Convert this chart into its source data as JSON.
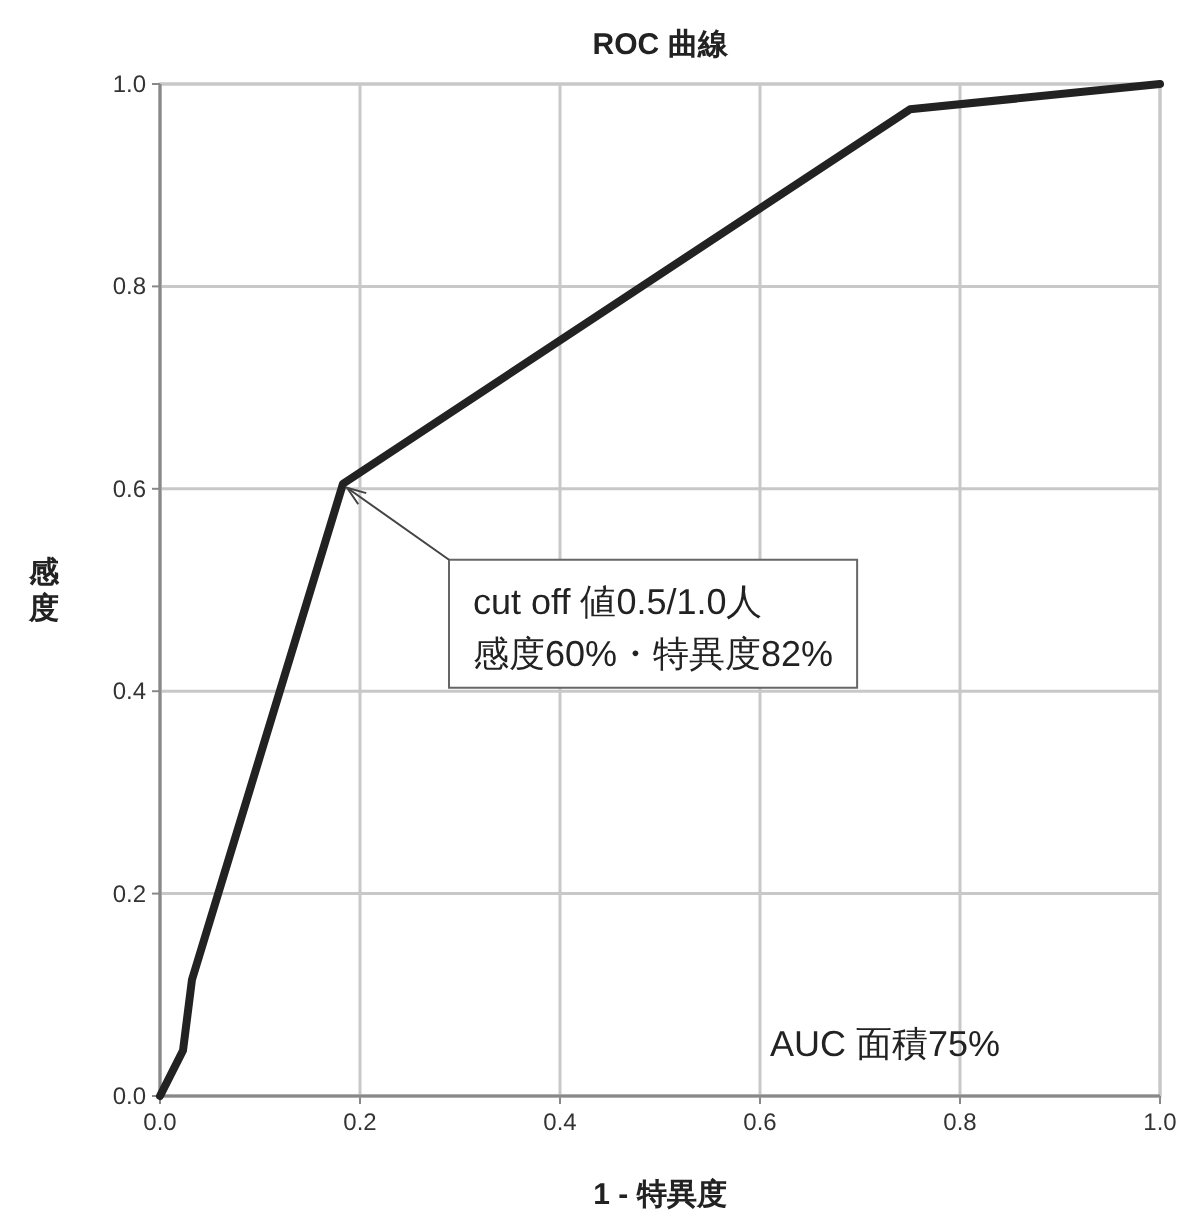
{
  "chart_data": {
    "type": "line",
    "title": "ROC 曲線",
    "xlabel": "1 - 特異度",
    "ylabel": "感度",
    "x": [
      0,
      0.023,
      0.032,
      0.183,
      0.75,
      1
    ],
    "series": [
      {
        "color": "#222222",
        "values": [
          0,
          0.045,
          0.115,
          0.605,
          0.975,
          1
        ]
      }
    ],
    "xlim": [
      0,
      1
    ],
    "ylim": [
      0,
      1
    ],
    "xticks": [
      {
        "value": 0,
        "label": "0.0"
      },
      {
        "value": 0.2,
        "label": "0.2"
      },
      {
        "value": 0.4,
        "label": "0.4"
      },
      {
        "value": 0.6,
        "label": "0.6"
      },
      {
        "value": 0.8,
        "label": "0.8"
      },
      {
        "value": 1,
        "label": "1.0"
      }
    ],
    "yticks": [
      {
        "value": 0,
        "label": "0.0"
      },
      {
        "value": 0.2,
        "label": "0.2"
      },
      {
        "value": 0.4,
        "label": "0.4"
      },
      {
        "value": 0.6,
        "label": "0.6"
      },
      {
        "value": 0.8,
        "label": "0.8"
      },
      {
        "value": 1,
        "label": "1.0"
      }
    ],
    "grid": true,
    "marker": "none",
    "line_style": "solid",
    "annotations": [
      {
        "text": "cut off 値0.5/1.0人",
        "x": 0.183,
        "y": 0.605
      },
      "感度60%・特異度82%",
      "AUC 面積75%"
    ]
  }
}
